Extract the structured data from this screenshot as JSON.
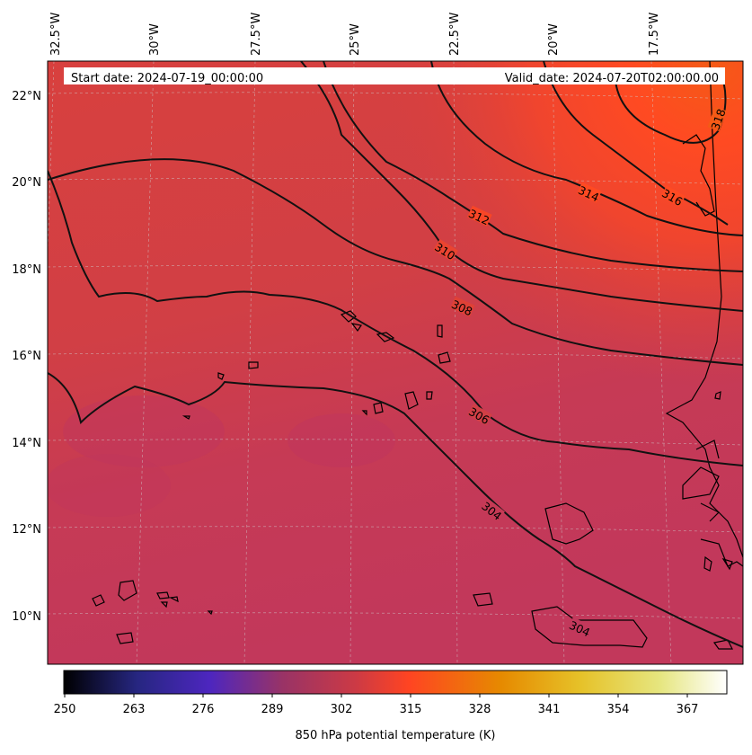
{
  "header": {
    "start_date": "Start date: 2024-07-19_00:00:00",
    "valid_date": "Valid_date: 2024-07-20T02:00:00.00"
  },
  "longitude_labels": [
    "32.5°W",
    "30°W",
    "27.5°W",
    "25°W",
    "22.5°W",
    "20°W",
    "17.5°W"
  ],
  "latitude_labels": [
    "22°N",
    "20°N",
    "18°N",
    "16°N",
    "14°N",
    "12°N",
    "10°N"
  ],
  "contour_labels": [
    "318",
    "316",
    "314",
    "312",
    "310",
    "308",
    "306",
    "304",
    "304"
  ],
  "colorbar": {
    "label": "850 hPa potential temperature (K)",
    "ticks": [
      "250",
      "263",
      "276",
      "289",
      "302",
      "315",
      "328",
      "341",
      "354",
      "367"
    ],
    "colormap": "CMRmap",
    "colors": [
      "#000000",
      "#262680",
      "#4d26bf",
      "#993366",
      "#cc3a45",
      "#ff4422",
      "#e68a00",
      "#e6c229",
      "#e6e680",
      "#ffffff"
    ]
  },
  "field_colors": {
    "cool": "#c2385b",
    "mid": "#d8403e",
    "warm": "#ff4a22",
    "hot": "#f45a16"
  }
}
